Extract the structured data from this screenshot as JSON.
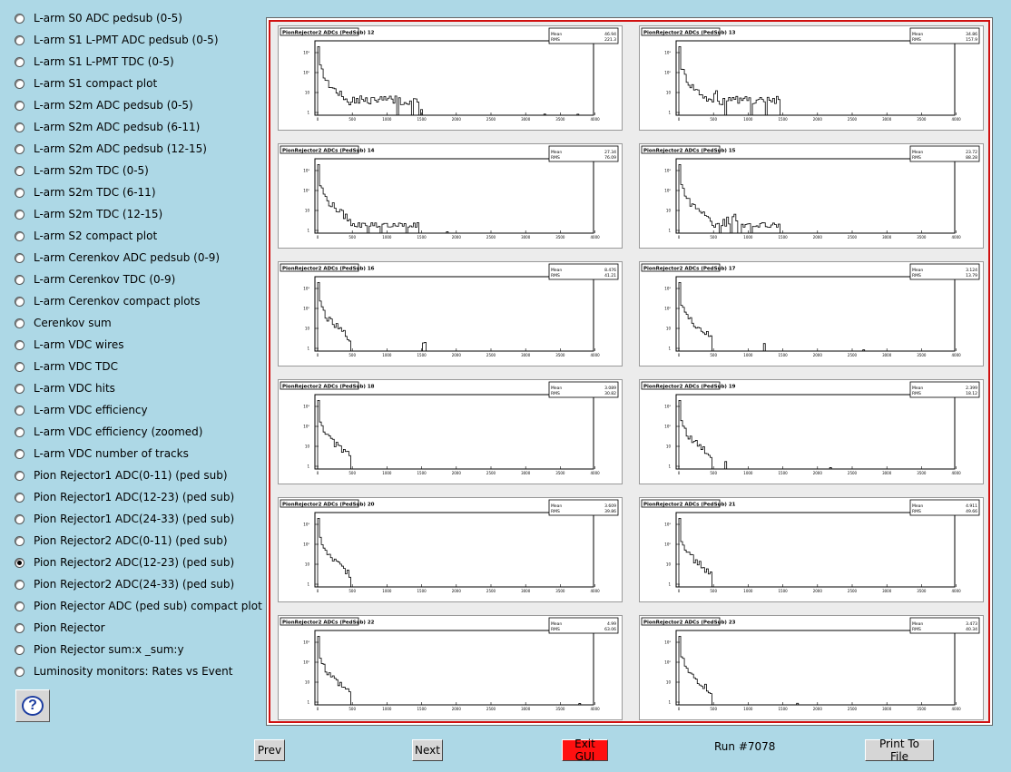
{
  "menu": {
    "items": [
      {
        "label": "L-arm S0 ADC pedsub (0-5)"
      },
      {
        "label": "L-arm S1 L-PMT ADC pedsub (0-5)"
      },
      {
        "label": "L-arm S1 L-PMT TDC (0-5)"
      },
      {
        "label": "L-arm S1 compact plot"
      },
      {
        "label": "L-arm S2m ADC pedsub (0-5)"
      },
      {
        "label": "L-arm S2m ADC pedsub (6-11)"
      },
      {
        "label": "L-arm S2m ADC pedsub (12-15)"
      },
      {
        "label": "L-arm S2m TDC (0-5)"
      },
      {
        "label": "L-arm S2m TDC (6-11)"
      },
      {
        "label": "L-arm S2m TDC (12-15)"
      },
      {
        "label": "L-arm S2 compact plot"
      },
      {
        "label": "L-arm Cerenkov ADC pedsub (0-9)"
      },
      {
        "label": "L-arm Cerenkov TDC (0-9)"
      },
      {
        "label": "L-arm Cerenkov compact plots"
      },
      {
        "label": "Cerenkov sum"
      },
      {
        "label": "L-arm VDC wires"
      },
      {
        "label": "L-arm VDC TDC"
      },
      {
        "label": "L-arm VDC hits"
      },
      {
        "label": "L-arm VDC efficiency"
      },
      {
        "label": "L-arm VDC efficiency (zoomed)"
      },
      {
        "label": "L-arm VDC number of tracks"
      },
      {
        "label": "Pion Rejector1 ADC(0-11) (ped sub)"
      },
      {
        "label": "Pion Rejector1 ADC(12-23) (ped sub)"
      },
      {
        "label": "Pion Rejector1 ADC(24-33) (ped sub)"
      },
      {
        "label": "Pion Rejector2 ADC(0-11) (ped sub)"
      },
      {
        "label": "Pion Rejector2 ADC(12-23) (ped sub)"
      },
      {
        "label": "Pion Rejector2 ADC(24-33) (ped sub)"
      },
      {
        "label": "Pion Rejector ADC (ped sub) compact plot"
      },
      {
        "label": "Pion Rejector"
      },
      {
        "label": "Pion Rejector sum:x _sum:y"
      },
      {
        "label": "Luminosity monitors: Rates vs Event"
      }
    ],
    "selected_index": 25
  },
  "help": {
    "glyph": "?"
  },
  "buttons": {
    "prev": "Prev",
    "next": "Next",
    "exit": "Exit GUI",
    "print": "Print To File"
  },
  "run_label": "Run #7078",
  "plots": [
    {
      "title": "PionRejector2 ADCs (PedSub) 12",
      "mean": "46.94",
      "rms": "221.3"
    },
    {
      "title": "PionRejector2 ADCs (PedSub) 13",
      "mean": "34.86",
      "rms": "157.9"
    },
    {
      "title": "PionRejector2 ADCs (PedSub) 14",
      "mean": "27.34",
      "rms": "76.09"
    },
    {
      "title": "PionRejector2 ADCs (PedSub) 15",
      "mean": "23.72",
      "rms": "88.28"
    },
    {
      "title": "PionRejector2 ADCs (PedSub) 16",
      "mean": "8.476",
      "rms": "41.21"
    },
    {
      "title": "PionRejector2 ADCs (PedSub) 17",
      "mean": "3.124",
      "rms": "13.79"
    },
    {
      "title": "PionRejector2 ADCs (PedSub) 18",
      "mean": "3.089",
      "rms": "30.82"
    },
    {
      "title": "PionRejector2 ADCs (PedSub) 19",
      "mean": "2.399",
      "rms": "18.12"
    },
    {
      "title": "PionRejector2 ADCs (PedSub) 20",
      "mean": "3.609",
      "rms": "39.86"
    },
    {
      "title": "PionRejector2 ADCs (PedSub) 21",
      "mean": "4.911",
      "rms": "49.66"
    },
    {
      "title": "PionRejector2 ADCs (PedSub) 22",
      "mean": "4.99",
      "rms": "63.06"
    },
    {
      "title": "PionRejector2 ADCs (PedSub) 23",
      "mean": "3.473",
      "rms": "40.34"
    }
  ],
  "stat_labels": {
    "mean": "Mean",
    "rms": "RMS"
  },
  "axis_ticks": [
    "0",
    "500",
    "1000",
    "1500",
    "2000",
    "2500",
    "3000",
    "3500",
    "4000"
  ],
  "y_ticks": [
    "1",
    "10",
    "10²",
    "10³"
  ]
}
